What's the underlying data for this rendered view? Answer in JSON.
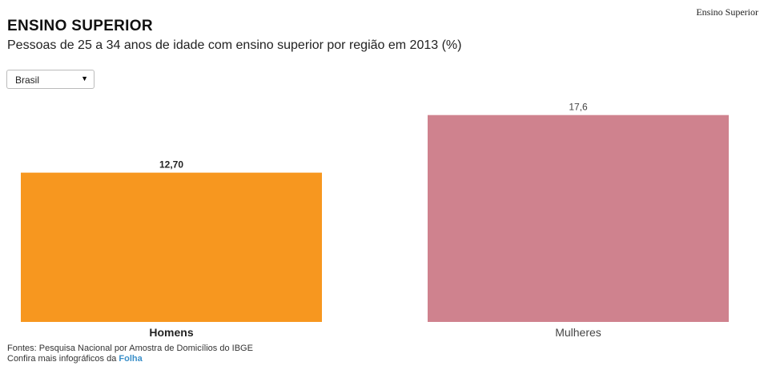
{
  "header": {
    "corner_label": "Ensino Superior",
    "title": "ENSINO SUPERIOR",
    "subtitle": "Pessoas de 25 a 34 anos de idade com ensino superior por região em 2013 (%)"
  },
  "region_select": {
    "value": "Brasil",
    "arrow_icon": "triangle-down-icon"
  },
  "chart_data": {
    "type": "bar",
    "title": "ENSINO SUPERIOR",
    "subtitle": "Pessoas de 25 a 34 anos de idade com ensino superior por região em 2013 (%)",
    "categories": [
      "Homens",
      "Mulheres"
    ],
    "values": [
      12.7,
      17.6
    ],
    "value_labels": [
      "12,70",
      "17,6"
    ],
    "colors": [
      "#f7971f",
      "#cf828e"
    ],
    "highlighted_category": "Homens",
    "ylim": [
      0,
      18.6
    ],
    "grid": false,
    "legend": "none",
    "xlabel": "",
    "ylabel": ""
  },
  "footer": {
    "sources": "Fontes: Pesquisa Nacional por Amostra de Domicílios do IBGE",
    "more_text": "Confira mais infográficos da ",
    "more_link": "Folha"
  }
}
